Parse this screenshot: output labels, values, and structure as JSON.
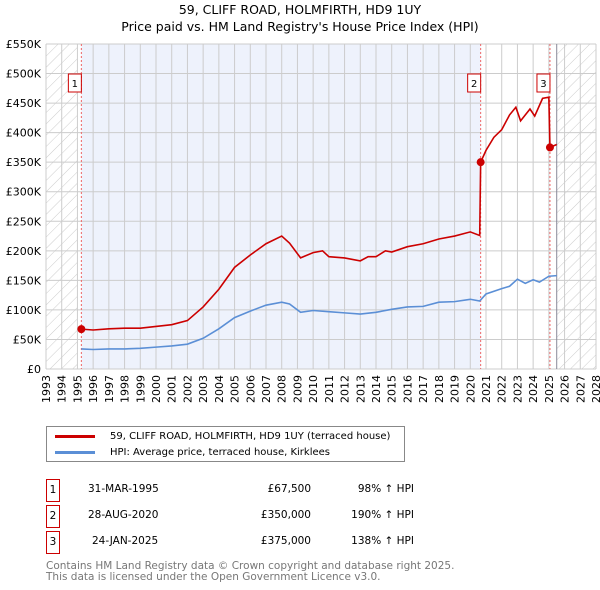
{
  "header": {
    "title": "59, CLIFF ROAD, HOLMFIRTH, HD9 1UY",
    "subtitle": "Price paid vs. HM Land Registry's House Price Index (HPI)"
  },
  "chart_data": {
    "type": "line",
    "title": "59, CLIFF ROAD, HOLMFIRTH, HD9 1UY",
    "xlim": [
      1993,
      2028
    ],
    "ylim": [
      0,
      550000
    ],
    "x_ticks": [
      "1993",
      "1994",
      "1995",
      "1996",
      "1997",
      "1998",
      "1999",
      "2000",
      "2001",
      "2002",
      "2003",
      "2004",
      "2005",
      "2006",
      "2007",
      "2008",
      "2009",
      "2010",
      "2011",
      "2012",
      "2013",
      "2014",
      "2015",
      "2016",
      "2017",
      "2018",
      "2019",
      "2020",
      "2021",
      "2022",
      "2023",
      "2024",
      "2025",
      "2026",
      "2027",
      "2028"
    ],
    "y_ticks": [
      {
        "v": 0,
        "label": "£0"
      },
      {
        "v": 50000,
        "label": "£50K"
      },
      {
        "v": 100000,
        "label": "£100K"
      },
      {
        "v": 150000,
        "label": "£150K"
      },
      {
        "v": 200000,
        "label": "£200K"
      },
      {
        "v": 250000,
        "label": "£250K"
      },
      {
        "v": 300000,
        "label": "£300K"
      },
      {
        "v": 350000,
        "label": "£350K"
      },
      {
        "v": 400000,
        "label": "£400K"
      },
      {
        "v": 450000,
        "label": "£450K"
      },
      {
        "v": 500000,
        "label": "£500K"
      },
      {
        "v": 550000,
        "label": "£550K"
      }
    ],
    "grid": true,
    "shaded_range": [
      1995.25,
      2020.66
    ],
    "hatched_ranges": [
      [
        1993,
        1995.0
      ],
      [
        2025.5,
        2028
      ]
    ],
    "series": [
      {
        "name": "59, CLIFF ROAD, HOLMFIRTH, HD9 1UY (terraced house)",
        "color": "#cc0000",
        "x": [
          1995.25,
          1996,
          1997,
          1998,
          1999,
          2000,
          2001,
          2002,
          2003,
          2004,
          2005,
          2006,
          2007,
          2008,
          2008.5,
          2009.2,
          2010,
          2010.6,
          2011,
          2012,
          2013,
          2013.5,
          2014,
          2014.6,
          2015,
          2016,
          2017,
          2018,
          2019,
          2020,
          2020.6,
          2020.66,
          2021,
          2021.5,
          2022,
          2022.5,
          2022.9,
          2023.2,
          2023.8,
          2024.1,
          2024.6,
          2025,
          2025.07,
          2025.5
        ],
        "y": [
          67500,
          66000,
          68000,
          69000,
          69000,
          72000,
          75000,
          82000,
          105000,
          135000,
          172000,
          193000,
          212000,
          225000,
          213000,
          188000,
          197000,
          200000,
          190000,
          188000,
          183000,
          190000,
          190000,
          200000,
          198000,
          207000,
          212000,
          220000,
          225000,
          232000,
          226000,
          350000,
          370000,
          392000,
          405000,
          430000,
          443000,
          420000,
          440000,
          428000,
          458000,
          460000,
          375000,
          380000
        ]
      },
      {
        "name": "HPI: Average price, terraced house, Kirklees",
        "color": "#5b8fd6",
        "x": [
          1995.25,
          1996,
          1997,
          1998,
          1999,
          2000,
          2001,
          2002,
          2003,
          2004,
          2005,
          2006,
          2007,
          2008,
          2008.5,
          2009.2,
          2010,
          2011,
          2012,
          2013,
          2014,
          2015,
          2016,
          2017,
          2018,
          2019,
          2020,
          2020.6,
          2021,
          2022,
          2022.5,
          2023,
          2023.5,
          2024,
          2024.4,
          2025,
          2025.5
        ],
        "y": [
          34000,
          33000,
          34000,
          34000,
          35000,
          37000,
          39000,
          42000,
          52000,
          68000,
          87000,
          98000,
          108000,
          113000,
          110000,
          96000,
          99000,
          97000,
          95000,
          93000,
          96000,
          101000,
          105000,
          106000,
          113000,
          114000,
          118000,
          115000,
          127000,
          136000,
          140000,
          152000,
          145000,
          151000,
          147000,
          157000,
          158000
        ]
      }
    ],
    "sales": [
      {
        "n": "1",
        "x": 1995.25,
        "y": 67500,
        "date": "31-MAR-1995",
        "price": "£67,500",
        "hpi": "98% ↑ HPI"
      },
      {
        "n": "2",
        "x": 2020.66,
        "y": 350000,
        "date": "28-AUG-2020",
        "price": "£350,000",
        "hpi": "190% ↑ HPI"
      },
      {
        "n": "3",
        "x": 2025.07,
        "y": 375000,
        "date": "24-JAN-2025",
        "price": "£375,000",
        "hpi": "138% ↑ HPI"
      }
    ]
  },
  "legend": {
    "red": "59, CLIFF ROAD, HOLMFIRTH, HD9 1UY (terraced house)",
    "blue": "HPI: Average price, terraced house, Kirklees"
  },
  "footer": {
    "line1": "Contains HM Land Registry data © Crown copyright and database right 2025.",
    "line2": "This data is licensed under the Open Government Licence v3.0."
  }
}
